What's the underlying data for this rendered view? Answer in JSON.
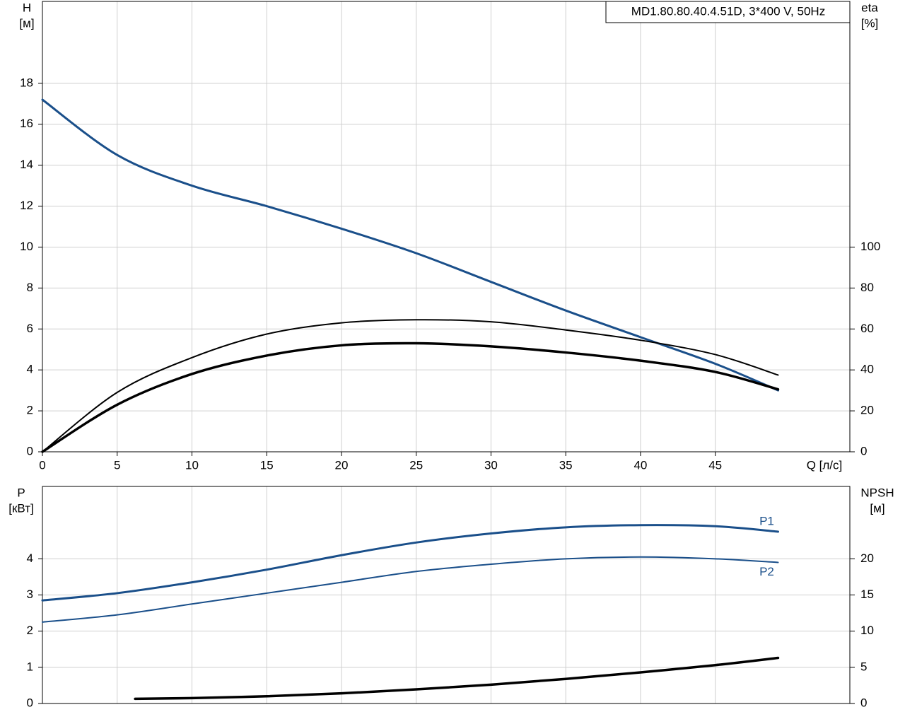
{
  "chart_data": [
    {
      "type": "line",
      "title": "MD1.80.80.40.4.51D, 3*400 V, 50Hz",
      "xlabel": "Q [л/с]",
      "ylabel": [
        "H",
        "[м]"
      ],
      "y2label": [
        "eta",
        "[%]"
      ],
      "xlim": [
        0,
        54
      ],
      "xticks": [
        0,
        5,
        10,
        15,
        20,
        25,
        30,
        35,
        40,
        45
      ],
      "ylim": [
        0,
        22
      ],
      "yticks": [
        0,
        2,
        4,
        6,
        8,
        10,
        12,
        14,
        16,
        18
      ],
      "y2lim": [
        0,
        220
      ],
      "y2ticks": [
        0,
        20,
        40,
        60,
        80,
        100
      ],
      "grid": true,
      "x": [
        0,
        5,
        10,
        15,
        20,
        25,
        30,
        35,
        40,
        45,
        49.2
      ],
      "series": [
        {
          "color": "#1a4f8a",
          "values": [
            17.2,
            14.5,
            13.0,
            12.0,
            10.9,
            9.7,
            8.3,
            6.9,
            5.6,
            4.3,
            3.0
          ]
        },
        {
          "color": "#000000",
          "axis": "y2",
          "values": [
            0,
            29,
            46,
            57.5,
            63,
            64.5,
            63.5,
            59.5,
            54.5,
            47.5,
            37.5
          ]
        },
        {
          "color": "#000000",
          "axis": "y2",
          "values": [
            0,
            23,
            38,
            47,
            52,
            53,
            51.5,
            48.5,
            44.5,
            39,
            30.5
          ]
        }
      ]
    },
    {
      "type": "line",
      "ylabel": [
        "P",
        "[кВт]"
      ],
      "y2label": [
        "NPSH",
        "[м]"
      ],
      "xlim": [
        0,
        54
      ],
      "xticks": [
        0,
        5,
        10,
        15,
        20,
        25,
        30,
        35,
        40,
        45
      ],
      "xtick_labels": false,
      "ylim": [
        0,
        6
      ],
      "yticks": [
        0,
        1,
        2,
        3,
        4
      ],
      "y2lim": [
        0,
        30
      ],
      "y2ticks": [
        0,
        5,
        10,
        15,
        20
      ],
      "grid": true,
      "x": [
        0,
        5,
        10,
        15,
        20,
        25,
        30,
        35,
        40,
        45,
        49.2
      ],
      "series": [
        {
          "name": "P1",
          "color": "#1a4f8a",
          "values": [
            2.85,
            3.05,
            3.35,
            3.7,
            4.1,
            4.45,
            4.7,
            4.87,
            4.93,
            4.9,
            4.75
          ]
        },
        {
          "name": "P2",
          "color": "#1a4f8a",
          "values": [
            2.25,
            2.45,
            2.75,
            3.05,
            3.35,
            3.65,
            3.85,
            4.0,
            4.05,
            4.0,
            3.9
          ]
        },
        {
          "color": "#000000",
          "axis": "y2",
          "x": [
            6.2,
            10,
            15,
            20,
            25,
            30,
            35,
            40,
            45,
            49.2
          ],
          "values": [
            0.65,
            0.75,
            1.0,
            1.4,
            1.95,
            2.6,
            3.4,
            4.3,
            5.3,
            6.3
          ]
        }
      ]
    }
  ]
}
